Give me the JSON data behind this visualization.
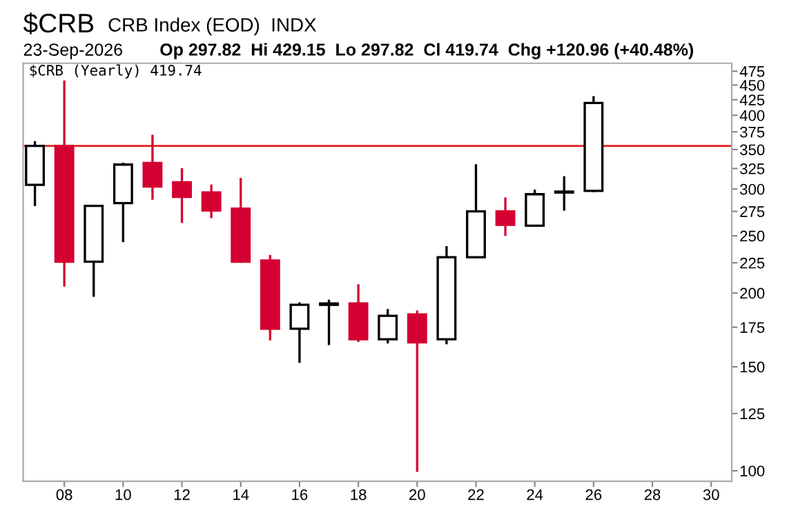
{
  "chart_data": {
    "type": "candlestick",
    "title": "$CRB",
    "subtitle": "CRB Index (EOD)  INDX",
    "annotations": [
      "23-Sep-2026",
      "Op 297.82  Hi 429.15  Lo 297.82  Cl 419.74  Chg +120.96 (+40.48%)",
      "$CRB (Yearly) 419.74"
    ],
    "x": [
      2007,
      2008,
      2009,
      2010,
      2011,
      2012,
      2013,
      2014,
      2015,
      2016,
      2017,
      2018,
      2019,
      2020,
      2021,
      2022,
      2023,
      2024,
      2025,
      2026
    ],
    "ohlc": [
      [
        305,
        360,
        282,
        355
      ],
      [
        355,
        456,
        206,
        226
      ],
      [
        226,
        281,
        198,
        281
      ],
      [
        284,
        331,
        245,
        330
      ],
      [
        332,
        369,
        289,
        303
      ],
      [
        308,
        324,
        264,
        291
      ],
      [
        296,
        304,
        269,
        276
      ],
      [
        278,
        312,
        226,
        226
      ],
      [
        227,
        231,
        167,
        174
      ],
      [
        174,
        192,
        153,
        191
      ],
      [
        191,
        194,
        164,
        192
      ],
      [
        192,
        206,
        166,
        167
      ],
      [
        167,
        187,
        165,
        183
      ],
      [
        184,
        186,
        100,
        165
      ],
      [
        167,
        239,
        164.5,
        230
      ],
      [
        230,
        329,
        230,
        275
      ],
      [
        275,
        289,
        251,
        261
      ],
      [
        260,
        298,
        260,
        294
      ],
      [
        296,
        314,
        277,
        297
      ],
      [
        297.82,
        429.15,
        297.82,
        419.74
      ]
    ],
    "colors": [
      "#000000",
      "#d40032",
      "#000000",
      "#000000",
      "#d40032",
      "#d40032",
      "#d40032",
      "#d40032",
      "#d40032",
      "#000000",
      "#000000",
      "#d40032",
      "#000000",
      "#d40032",
      "#000000",
      "#000000",
      "#d40032",
      "#000000",
      "#000000",
      "#000000"
    ],
    "log": true,
    "xlim": [
      2006.6,
      2030.7
    ],
    "xticks": [
      {
        "value": 2008,
        "label": "08"
      },
      {
        "value": 2010,
        "label": "10"
      },
      {
        "value": 2012,
        "label": "12"
      },
      {
        "value": 2014,
        "label": "14"
      },
      {
        "value": 2016,
        "label": "16"
      },
      {
        "value": 2018,
        "label": "18"
      },
      {
        "value": 2020,
        "label": "20"
      },
      {
        "value": 2022,
        "label": "22"
      },
      {
        "value": 2024,
        "label": "24"
      },
      {
        "value": 2026,
        "label": "26"
      },
      {
        "value": 2028,
        "label": "28"
      },
      {
        "value": 2030,
        "label": "30"
      }
    ],
    "ylim": [
      96,
      490
    ],
    "yticks": [
      100,
      125,
      150,
      175,
      200,
      225,
      250,
      275,
      300,
      325,
      350,
      375,
      400,
      425,
      450,
      475
    ],
    "ref_lines": [
      {
        "axis": "y",
        "value": 355,
        "color": "#e02020"
      }
    ],
    "grid": false
  }
}
